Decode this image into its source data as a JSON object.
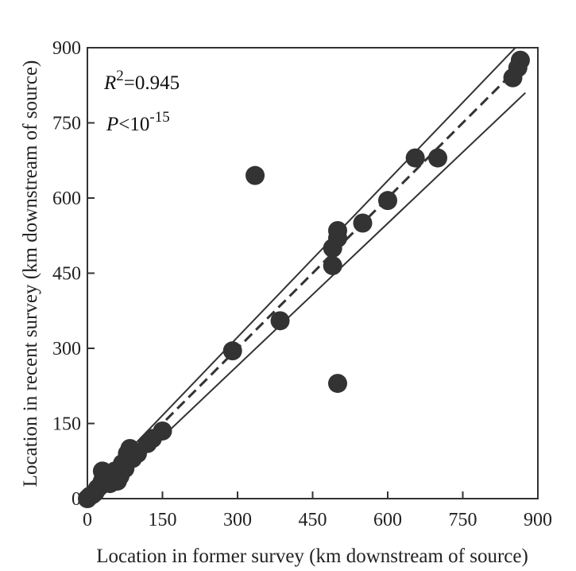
{
  "chart_data": {
    "type": "scatter",
    "title": "",
    "xlabel": "Location in former survey (km downstream of source)",
    "ylabel": "Location in recent survey (km downstream of  source)",
    "xlim": [
      0,
      900
    ],
    "ylim": [
      0,
      900
    ],
    "x_ticks": [
      "0",
      "150",
      "300",
      "450",
      "600",
      "750",
      "900"
    ],
    "y_ticks": [
      "0",
      "150",
      "300",
      "450",
      "600",
      "750",
      "900"
    ],
    "grid": false,
    "annotations": {
      "r2_symbol": "R",
      "r2_exp": "2",
      "r2_value": "=0.945",
      "p_symbol": "P",
      "p_value": "<10",
      "p_exp": "-15"
    },
    "points": [
      {
        "x": 0,
        "y": 0
      },
      {
        "x": 5,
        "y": 5
      },
      {
        "x": 10,
        "y": 8
      },
      {
        "x": 15,
        "y": 12
      },
      {
        "x": 20,
        "y": 20
      },
      {
        "x": 25,
        "y": 25
      },
      {
        "x": 30,
        "y": 35
      },
      {
        "x": 30,
        "y": 55
      },
      {
        "x": 35,
        "y": 45
      },
      {
        "x": 40,
        "y": 38
      },
      {
        "x": 45,
        "y": 30
      },
      {
        "x": 50,
        "y": 50
      },
      {
        "x": 55,
        "y": 55
      },
      {
        "x": 60,
        "y": 35
      },
      {
        "x": 65,
        "y": 45
      },
      {
        "x": 70,
        "y": 70
      },
      {
        "x": 75,
        "y": 60
      },
      {
        "x": 80,
        "y": 90
      },
      {
        "x": 85,
        "y": 100
      },
      {
        "x": 90,
        "y": 80
      },
      {
        "x": 100,
        "y": 90
      },
      {
        "x": 120,
        "y": 110
      },
      {
        "x": 130,
        "y": 120
      },
      {
        "x": 150,
        "y": 135
      },
      {
        "x": 290,
        "y": 295
      },
      {
        "x": 335,
        "y": 645
      },
      {
        "x": 385,
        "y": 355
      },
      {
        "x": 490,
        "y": 465
      },
      {
        "x": 490,
        "y": 500
      },
      {
        "x": 500,
        "y": 520
      },
      {
        "x": 500,
        "y": 535
      },
      {
        "x": 500,
        "y": 230
      },
      {
        "x": 550,
        "y": 550
      },
      {
        "x": 600,
        "y": 595
      },
      {
        "x": 655,
        "y": 680
      },
      {
        "x": 700,
        "y": 680
      },
      {
        "x": 850,
        "y": 840
      },
      {
        "x": 860,
        "y": 860
      },
      {
        "x": 865,
        "y": 875
      }
    ],
    "fit_line": {
      "style": "dashed",
      "from": [
        0,
        0
      ],
      "to": [
        870,
        870
      ]
    },
    "bound_lines": [
      {
        "style": "solid",
        "from": [
          20,
          0
        ],
        "to": [
          875,
          810
        ]
      },
      {
        "style": "solid",
        "from": [
          0,
          10
        ],
        "to": [
          855,
          900
        ]
      }
    ],
    "colors": {
      "marker": "#333333",
      "line": "#333333",
      "text": "#222222"
    }
  }
}
